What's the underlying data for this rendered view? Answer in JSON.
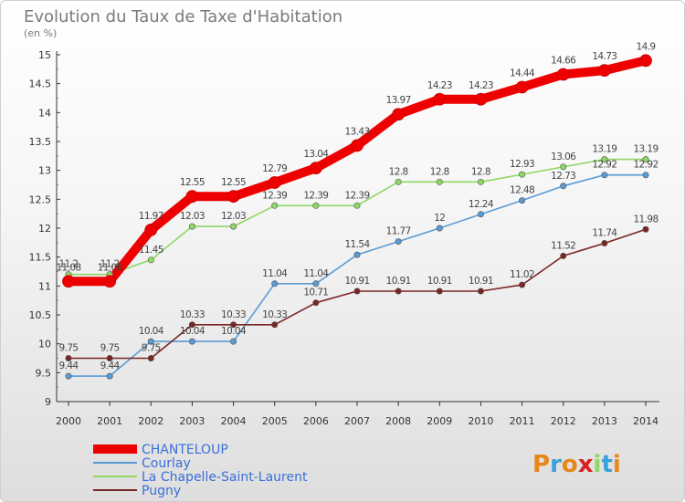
{
  "chart_data": {
    "type": "line",
    "title": "Evolution du Taux de Taxe d'Habitation",
    "subtitle": "(en %)",
    "x": [
      "2000",
      "2001",
      "2002",
      "2003",
      "2004",
      "2005",
      "2006",
      "2007",
      "2008",
      "2009",
      "2010",
      "2011",
      "2012",
      "2013",
      "2014"
    ],
    "ylim": [
      9,
      15
    ],
    "yticks": [
      "9",
      "9.5",
      "10",
      "10.5",
      "11",
      "11.5",
      "12",
      "12.5",
      "13",
      "13.5",
      "14",
      "14.5",
      "15"
    ],
    "grid": false,
    "legend_position": "bottom-left",
    "series": [
      {
        "name": "CHANTELOUP",
        "color": "#ee0000",
        "values": [
          11.08,
          11.08,
          11.97,
          12.55,
          12.55,
          12.79,
          13.04,
          13.43,
          13.97,
          14.23,
          14.23,
          14.44,
          14.66,
          14.73,
          14.9
        ],
        "labels": [
          "11.08",
          "11.08",
          "11.97",
          "12.55",
          "12.55",
          "12.79",
          "13.04",
          "13.43",
          "13.97",
          "14.23",
          "14.23",
          "14.44",
          "14.66",
          "14.73",
          "14.9"
        ]
      },
      {
        "name": "Courlay",
        "color": "#5b9bd5",
        "values": [
          9.44,
          9.44,
          10.04,
          10.04,
          10.04,
          11.04,
          11.04,
          11.54,
          11.77,
          12,
          12.24,
          12.48,
          12.73,
          12.92,
          12.92
        ],
        "labels": [
          "9.44",
          "9.44",
          "10.04",
          "10.04",
          "10.04",
          "11.04",
          "11.04",
          "11.54",
          "11.77",
          "12",
          "12.24",
          "12.48",
          "12.73",
          "12.92",
          "12.92"
        ]
      },
      {
        "name": "La Chapelle-Saint-Laurent",
        "color": "#8ed863",
        "values": [
          11.2,
          11.2,
          11.45,
          12.03,
          12.03,
          12.39,
          12.39,
          12.39,
          12.8,
          12.8,
          12.8,
          12.93,
          13.06,
          13.19,
          13.19
        ],
        "labels": [
          "11.2",
          "11.2",
          "11.45",
          "12.03",
          "12.03",
          "12.39",
          "12.39",
          "12.39",
          "12.8",
          "12.8",
          "12.8",
          "12.93",
          "13.06",
          "13.19",
          "13.19"
        ]
      },
      {
        "name": "Pugny",
        "color": "#7a2525",
        "values": [
          9.75,
          9.75,
          9.75,
          10.33,
          10.33,
          10.33,
          10.71,
          10.91,
          10.91,
          10.91,
          10.91,
          11.02,
          11.52,
          11.74,
          11.98
        ],
        "labels": [
          "9.75",
          "9.75",
          "9.75",
          "10.33",
          "10.33",
          "10.33",
          "10.71",
          "10.91",
          "10.91",
          "10.91",
          "10.91",
          "11.02",
          "11.52",
          "11.74",
          "11.98"
        ]
      }
    ]
  },
  "branding": {
    "logo_text": "Proxiti",
    "letters": [
      "P",
      "r",
      "o",
      "x",
      "i",
      "t",
      "i"
    ],
    "letter_colors": [
      "#e8861a",
      "#3aa0d8",
      "#e8861a",
      "#d82020",
      "#8ed863",
      "#3aa0d8",
      "#e8861a"
    ]
  }
}
